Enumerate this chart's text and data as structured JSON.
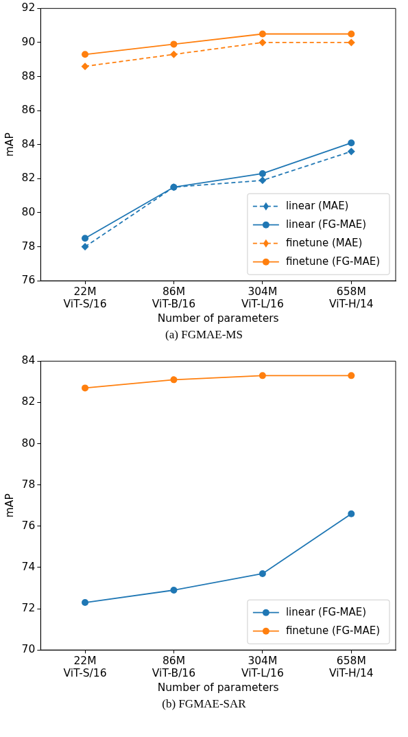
{
  "chart_data": [
    {
      "type": "line",
      "title": "(a)  FGMAE-MS",
      "xlabel": "Number of parameters",
      "ylabel": "mAP",
      "grid": false,
      "legend": "bottom right",
      "categories": [
        "22M\nViT-S/16",
        "86M\nViT-B/16",
        "304M\nViT-L/16",
        "658M\nViT-H/14"
      ],
      "ylim": [
        76,
        92
      ],
      "yticks": [
        76,
        78,
        80,
        82,
        84,
        86,
        88,
        90,
        92
      ],
      "series": [
        {
          "name": "linear (MAE)",
          "color": "#1f77b4",
          "line_style": "dashed",
          "marker": "diamond",
          "values": [
            78.0,
            81.5,
            81.9,
            83.6
          ]
        },
        {
          "name": "linear (FG-MAE)",
          "color": "#1f77b4",
          "line_style": "solid",
          "marker": "circle",
          "values": [
            78.5,
            81.5,
            82.3,
            84.1
          ]
        },
        {
          "name": "finetune (MAE)",
          "color": "#ff7f0e",
          "line_style": "dashed",
          "marker": "diamond",
          "values": [
            88.6,
            89.3,
            90.0,
            90.0
          ]
        },
        {
          "name": "finetune (FG-MAE)",
          "color": "#ff7f0e",
          "line_style": "solid",
          "marker": "circle",
          "values": [
            89.3,
            89.9,
            90.5,
            90.5
          ]
        }
      ]
    },
    {
      "type": "line",
      "title": "(b)  FGMAE-SAR",
      "xlabel": "Number of parameters",
      "ylabel": "mAP",
      "grid": false,
      "legend": "bottom right",
      "categories": [
        "22M\nViT-S/16",
        "86M\nViT-B/16",
        "304M\nViT-L/16",
        "658M\nViT-H/14"
      ],
      "ylim": [
        70,
        84
      ],
      "yticks": [
        70,
        72,
        74,
        76,
        78,
        80,
        82,
        84
      ],
      "series": [
        {
          "name": "linear (FG-MAE)",
          "color": "#1f77b4",
          "line_style": "solid",
          "marker": "circle",
          "values": [
            72.3,
            72.9,
            73.7,
            76.6
          ]
        },
        {
          "name": "finetune (FG-MAE)",
          "color": "#ff7f0e",
          "line_style": "solid",
          "marker": "circle",
          "values": [
            82.7,
            83.1,
            83.3,
            83.3
          ]
        }
      ]
    }
  ]
}
